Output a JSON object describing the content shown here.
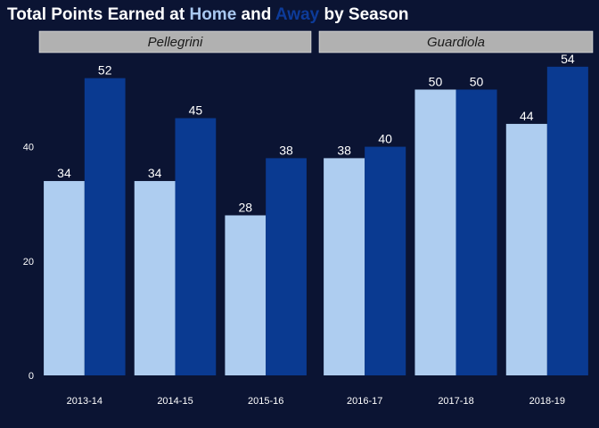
{
  "chart_data": {
    "type": "bar",
    "title": {
      "prefix": "Total Points Earned at ",
      "home_word": "Home",
      "middle": " and ",
      "away_word": "Away",
      "suffix": " by Season"
    },
    "series_keys": [
      "home",
      "away"
    ],
    "colors": {
      "background": "#0b1433",
      "home": "#aecdf0",
      "away": "#0a3a91",
      "home_title": "#a9c8f0",
      "away_title": "#0d3b99"
    },
    "ylim": [
      0,
      56
    ],
    "yticks": [
      0,
      20,
      40
    ],
    "grid": false,
    "legend": "none",
    "facets": [
      {
        "label": "Pellegrini",
        "categories": [
          "2013-14",
          "2014-15",
          "2015-16"
        ],
        "home": [
          34,
          34,
          28
        ],
        "away": [
          52,
          45,
          38
        ]
      },
      {
        "label": "Guardiola",
        "categories": [
          "2016-17",
          "2017-18",
          "2018-19"
        ],
        "home": [
          38,
          50,
          44
        ],
        "away": [
          40,
          50,
          54
        ]
      }
    ]
  }
}
